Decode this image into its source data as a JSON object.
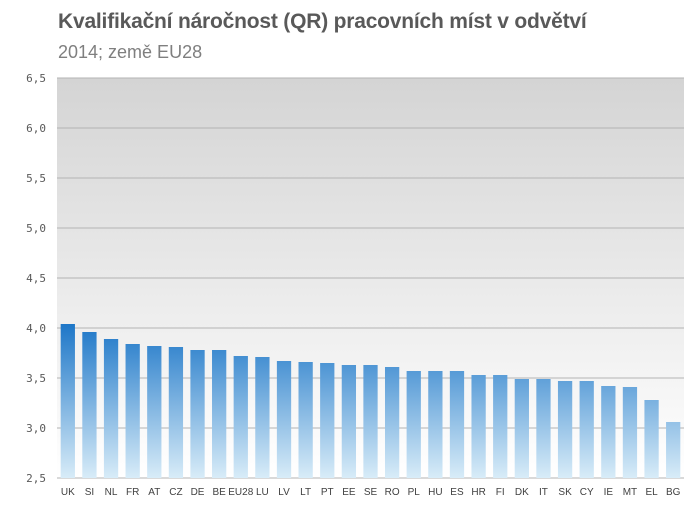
{
  "chart_data": {
    "type": "bar",
    "title": "Kvalifikační náročnost (QR)  pracovních míst v odvětví",
    "subtitle": "2014; země EU28",
    "xlabel": "",
    "ylabel": "",
    "ylim": [
      2.5,
      6.5
    ],
    "yticks": [
      "2,5",
      "3,0",
      "3,5",
      "4,0",
      "4,5",
      "5,0",
      "5,5",
      "6,0",
      "6,5"
    ],
    "ytick_values": [
      2.5,
      3.0,
      3.5,
      4.0,
      4.5,
      5.0,
      5.5,
      6.0,
      6.5
    ],
    "grid": true,
    "legend": "none",
    "categories": [
      "UK",
      "SI",
      "NL",
      "FR",
      "AT",
      "CZ",
      "DE",
      "BE",
      "EU28",
      "LU",
      "LV",
      "LT",
      "PT",
      "EE",
      "SE",
      "RO",
      "PL",
      "HU",
      "ES",
      "HR",
      "FI",
      "DK",
      "IT",
      "SK",
      "CY",
      "IE",
      "MT",
      "EL",
      "BG"
    ],
    "values": [
      4.04,
      3.96,
      3.89,
      3.84,
      3.82,
      3.81,
      3.78,
      3.78,
      3.72,
      3.71,
      3.67,
      3.66,
      3.65,
      3.63,
      3.63,
      3.61,
      3.57,
      3.57,
      3.57,
      3.53,
      3.53,
      3.49,
      3.49,
      3.47,
      3.47,
      3.42,
      3.41,
      3.28,
      3.06
    ],
    "colors": {
      "bar_top": "#1b75c7",
      "bar_bottom": "#d8ecf8",
      "plot_top": "#d4d4d4",
      "plot_bottom": "#ffffff",
      "grid": "#b3b3b3"
    }
  }
}
